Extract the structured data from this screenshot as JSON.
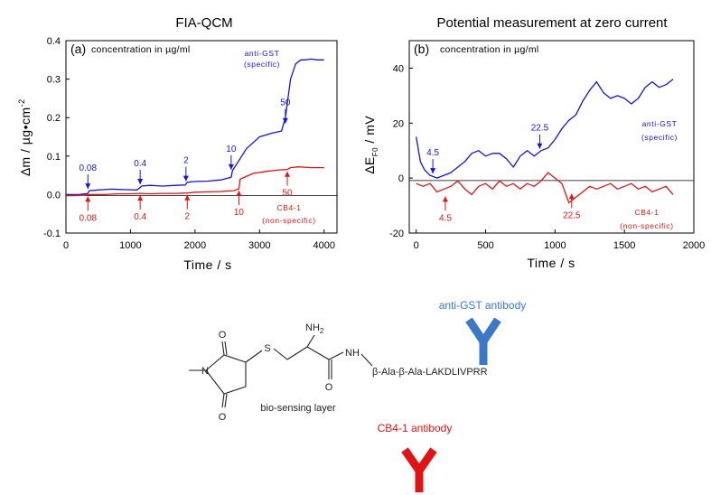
{
  "colors": {
    "blue": "#1414e0",
    "red": "#e01414",
    "antigst": "#3c78c8",
    "cb41": "#e01414",
    "black": "#000000"
  },
  "chart_data": [
    {
      "type": "line",
      "title": "FIA-QCM",
      "panel_tag": "(a)",
      "panel_note": "concentration in µg/ml",
      "xlabel": "Time / s",
      "ylabel": "∆m / µg•cm",
      "ylabel_sup": "-2",
      "xlim": [
        0,
        4200
      ],
      "ylim": [
        -0.1,
        0.4
      ],
      "xticks": [
        "0",
        "1000",
        "2000",
        "3000",
        "4000"
      ],
      "xtick_values": [
        0,
        1000,
        2000,
        3000,
        4000
      ],
      "yticks": [
        "-0.1",
        "0.0",
        "0.1",
        "0.2",
        "0.3",
        "0.4"
      ],
      "ytick_values": [
        -0.1,
        0.0,
        0.1,
        0.2,
        0.3,
        0.4
      ],
      "series": [
        {
          "name": "anti-GST (specific)",
          "color": "blue",
          "x": [
            0,
            200,
            340,
            360,
            500,
            700,
            900,
            1100,
            1150,
            1170,
            1300,
            1500,
            1700,
            1850,
            1880,
            2000,
            2200,
            2400,
            2560,
            2580,
            2800,
            3000,
            3200,
            3340,
            3400,
            3480,
            3560,
            3640,
            3700,
            3800,
            3900,
            4000
          ],
          "y": [
            0.0,
            0.0,
            0.003,
            0.01,
            0.012,
            0.014,
            0.013,
            0.012,
            0.018,
            0.022,
            0.024,
            0.022,
            0.024,
            0.025,
            0.032,
            0.034,
            0.035,
            0.038,
            0.045,
            0.062,
            0.12,
            0.15,
            0.16,
            0.165,
            0.2,
            0.3,
            0.34,
            0.35,
            0.35,
            0.352,
            0.35,
            0.35
          ]
        },
        {
          "name": "CB4-1 (non-specific)",
          "color": "red",
          "x": [
            0,
            200,
            340,
            400,
            600,
            800,
            1000,
            1150,
            1300,
            1500,
            1700,
            1880,
            2000,
            2200,
            2400,
            2600,
            2680,
            2700,
            2900,
            3100,
            3300,
            3430,
            3480,
            3600,
            3800,
            4000
          ],
          "y": [
            -0.003,
            -0.002,
            0.0,
            0.0,
            0.0,
            0.002,
            0.002,
            0.003,
            0.002,
            0.003,
            0.003,
            0.004,
            0.006,
            0.007,
            0.008,
            0.01,
            0.015,
            0.04,
            0.055,
            0.06,
            0.064,
            0.065,
            0.07,
            0.072,
            0.07,
            0.07
          ]
        }
      ],
      "annotations_blue": [
        {
          "text": "0.08",
          "x": 340,
          "y": 0.01
        },
        {
          "text": "0.4",
          "x": 1150,
          "y": 0.022
        },
        {
          "text": "2",
          "x": 1860,
          "y": 0.03
        },
        {
          "text": "10",
          "x": 2560,
          "y": 0.06
        },
        {
          "text": "50",
          "x": 3400,
          "y": 0.18
        }
      ],
      "annotations_red": [
        {
          "text": "0.08",
          "x": 340,
          "y": 0.0
        },
        {
          "text": "0.4",
          "x": 1150,
          "y": 0.003
        },
        {
          "text": "2",
          "x": 1880,
          "y": 0.004
        },
        {
          "text": "10",
          "x": 2680,
          "y": 0.015
        },
        {
          "text": "50",
          "x": 3430,
          "y": 0.065
        }
      ],
      "label_specific": [
        "anti-GST",
        "(specific)"
      ],
      "label_nonspecific": [
        "CB4-1",
        "(non-specific)"
      ]
    },
    {
      "type": "line",
      "title": "Potential measurement at zero current",
      "panel_tag": "(b)",
      "panel_note": "concentration in µg/ml",
      "xlabel": "Time / s",
      "ylabel": "∆E",
      "ylabel_sub": "F0",
      "ylabel_unit": " / mV",
      "xlim": [
        -50,
        2000
      ],
      "ylim": [
        -20,
        50
      ],
      "xticks": [
        "0",
        "500",
        "1000",
        "1500",
        "2000"
      ],
      "xtick_values": [
        0,
        500,
        1000,
        1500,
        2000
      ],
      "yticks": [
        "-20",
        "0",
        "20",
        "40"
      ],
      "ytick_values": [
        -20,
        0,
        20,
        40
      ],
      "series": [
        {
          "name": "anti-GST (specific)",
          "color": "blue",
          "x": [
            0,
            30,
            60,
            100,
            150,
            200,
            250,
            300,
            350,
            400,
            450,
            500,
            550,
            600,
            650,
            700,
            750,
            800,
            850,
            900,
            950,
            1000,
            1050,
            1100,
            1150,
            1200,
            1250,
            1300,
            1350,
            1400,
            1450,
            1500,
            1550,
            1600,
            1650,
            1700,
            1750,
            1800,
            1850
          ],
          "y": [
            15,
            6,
            3,
            1,
            0,
            1,
            2,
            4,
            6,
            9,
            10,
            8,
            9,
            9,
            7,
            4,
            8,
            10,
            8,
            10,
            11,
            14,
            18,
            21,
            23,
            28,
            32,
            35,
            31,
            29,
            30,
            29,
            27,
            29,
            33,
            35,
            33,
            34,
            36
          ]
        },
        {
          "name": "CB4-1 (non-specific)",
          "color": "red",
          "x": [
            0,
            50,
            100,
            150,
            200,
            250,
            300,
            350,
            400,
            450,
            500,
            550,
            600,
            650,
            700,
            750,
            800,
            850,
            900,
            950,
            1000,
            1050,
            1100,
            1150,
            1200,
            1250,
            1300,
            1350,
            1400,
            1450,
            1500,
            1550,
            1600,
            1650,
            1700,
            1750,
            1800,
            1850
          ],
          "y": [
            -2,
            -3,
            -2,
            -5,
            -4,
            -3,
            -1,
            -4,
            -6,
            -3,
            -2,
            -4,
            -1,
            -3,
            -2,
            -4,
            -2,
            -3,
            -1,
            2,
            0,
            -2,
            -9,
            -7,
            -5,
            -3,
            -4,
            -3,
            -2,
            -4,
            -3,
            -2,
            -4,
            -3,
            -5,
            -4,
            -3,
            -6
          ]
        }
      ],
      "annotations_blue": [
        {
          "text": "4.5",
          "x": 120,
          "y": 1
        },
        {
          "text": "22.5",
          "x": 890,
          "y": 10
        }
      ],
      "annotations_red": [
        {
          "text": "4.5",
          "x": 210,
          "y": -6
        },
        {
          "text": "22.5",
          "x": 1120,
          "y": -5
        }
      ],
      "label_specific": [
        "anti-GST",
        "(specific)"
      ],
      "label_nonspecific": [
        "CB4-1",
        "(non-specific)"
      ]
    }
  ],
  "diagram": {
    "antigst_label": "anti-GST antibody",
    "cb41_label": "CB4-1 antibody",
    "biosensing_label": "bio-sensing layer",
    "nh2_label": "NH",
    "nh2_sub": "2",
    "o_label": "O",
    "n_label": "N",
    "s_label": "S",
    "nh_label": "NH",
    "peptide_label": "β-Ala-β-Ala-LAKDLIVPRR"
  }
}
